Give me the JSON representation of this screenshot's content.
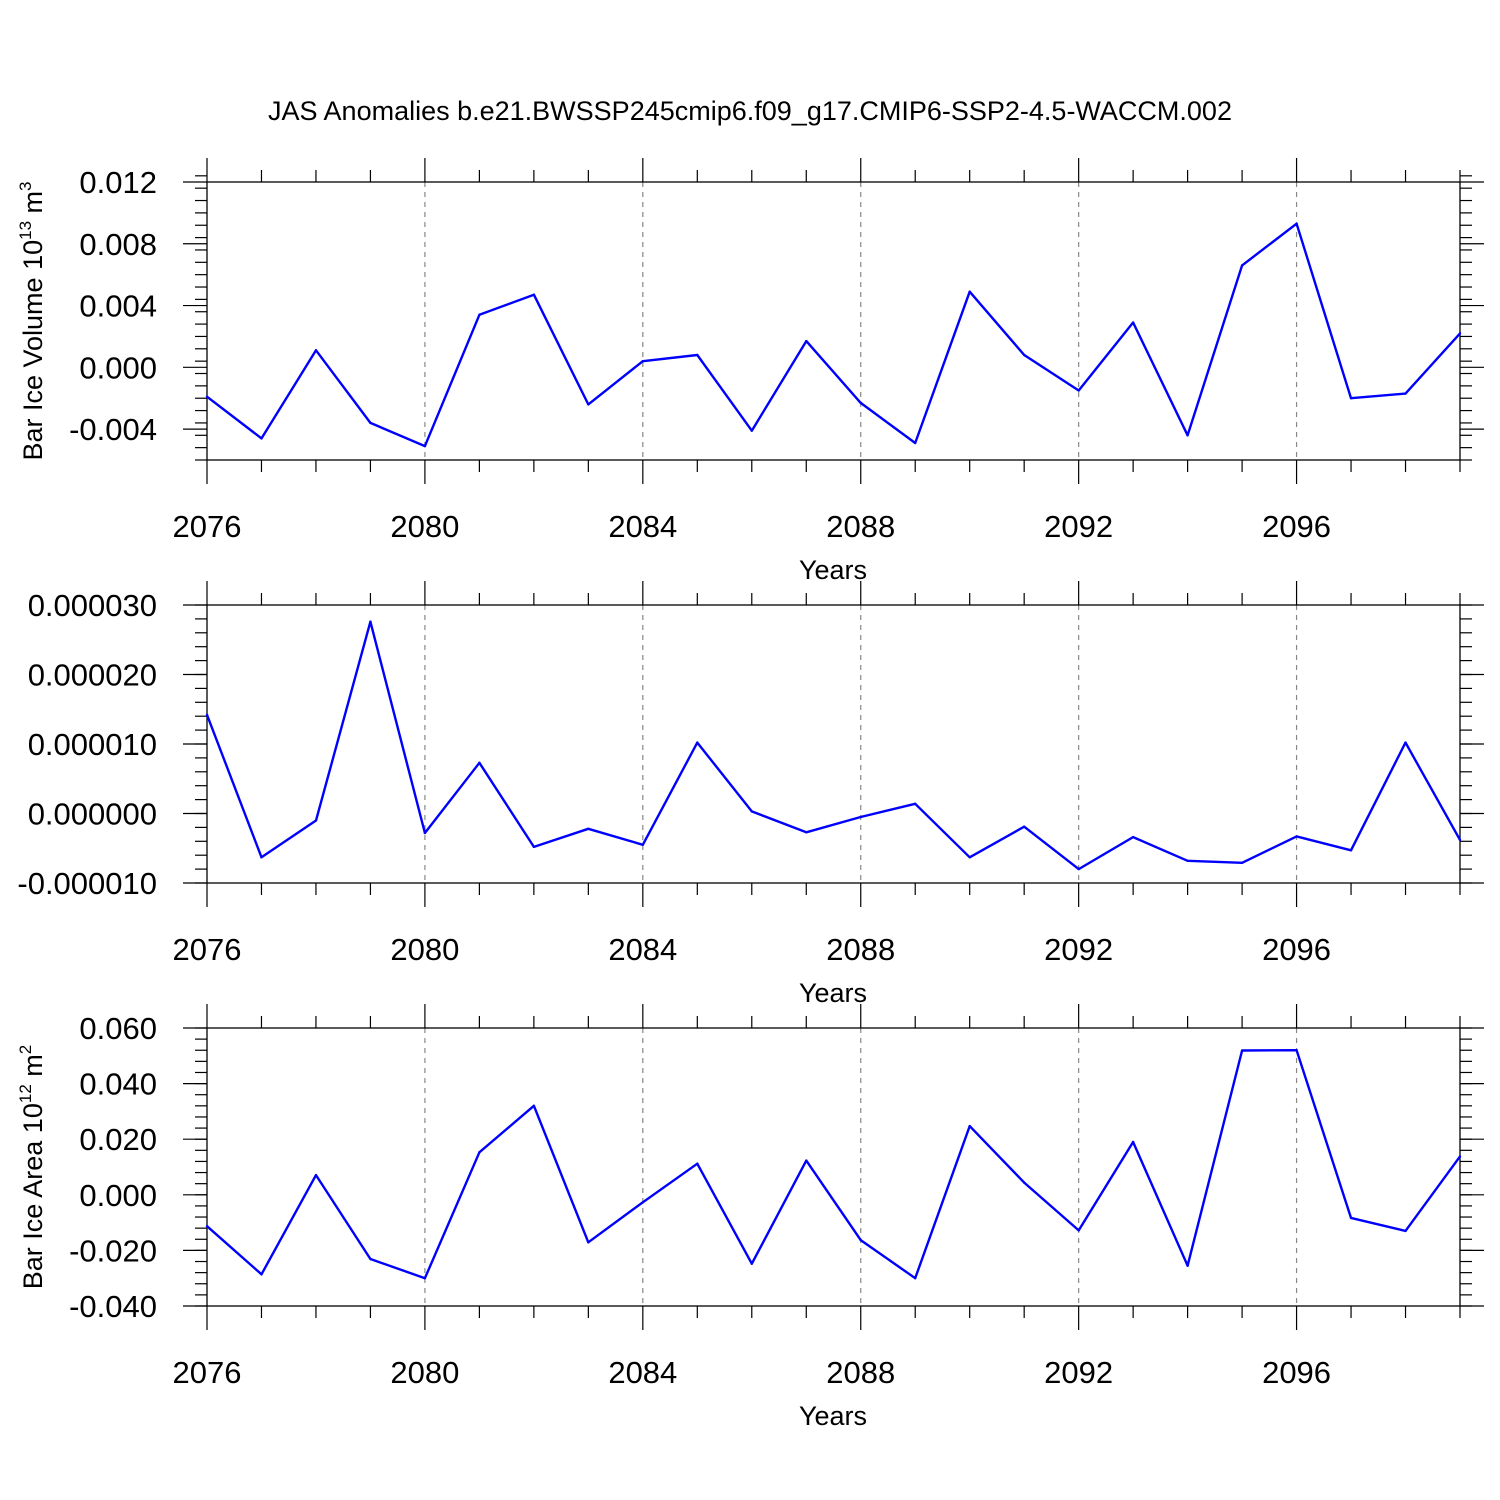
{
  "figure": {
    "title": "JAS Anomalies b.e21.BWSSP245cmip6.f09_g17.CMIP6-SSP2-4.5-WACCM.002"
  },
  "colors": {
    "series": "#0000ff",
    "axes": "#000000",
    "grid": "#888888"
  },
  "chart_data": [
    {
      "type": "line",
      "xlabel": "Years",
      "ylabel": "Bar Ice Volume",
      "ylabel_base": "10",
      "ylabel_exp": "13",
      "ylabel_unit": "m",
      "ylabel_unit_exp": "3",
      "xlim": [
        2076,
        2099
      ],
      "ylim": [
        -0.006,
        0.012
      ],
      "x_major_ticks": [
        2076,
        2080,
        2084,
        2088,
        2092,
        2096
      ],
      "x_tick_labels": [
        "2076",
        "2080",
        "2084",
        "2088",
        "2092",
        "2096"
      ],
      "y_major_ticks": [
        -0.004,
        0.0,
        0.004,
        0.008,
        0.012
      ],
      "y_tick_labels": [
        "-0.004",
        "0.000",
        "0.004",
        "0.008",
        "0.012"
      ],
      "y_minor_step": 0.0008,
      "grid": "dashed vertical at major x ticks",
      "x": [
        2076,
        2077,
        2078,
        2079,
        2080,
        2081,
        2082,
        2083,
        2084,
        2085,
        2086,
        2087,
        2088,
        2089,
        2090,
        2091,
        2092,
        2093,
        2094,
        2095,
        2096,
        2097,
        2098,
        2099
      ],
      "values": [
        -0.0019,
        -0.0046,
        0.0011,
        -0.0036,
        -0.0051,
        0.0034,
        0.0047,
        -0.0024,
        0.0004,
        0.0008,
        -0.0041,
        0.0017,
        -0.0023,
        -0.0049,
        0.0049,
        0.0008,
        -0.0015,
        0.0029,
        -0.0044,
        0.0066,
        0.0093,
        -0.002,
        -0.0017,
        0.0022
      ]
    },
    {
      "type": "line",
      "xlabel": "Years",
      "ylabel": "",
      "xlim": [
        2076,
        2099
      ],
      "ylim": [
        -1e-05,
        3e-05
      ],
      "x_major_ticks": [
        2076,
        2080,
        2084,
        2088,
        2092,
        2096
      ],
      "x_tick_labels": [
        "2076",
        "2080",
        "2084",
        "2088",
        "2092",
        "2096"
      ],
      "y_major_ticks": [
        -1e-05,
        0.0,
        1e-05,
        2e-05,
        3e-05
      ],
      "y_tick_labels": [
        "-0.000010",
        "0.000000",
        "0.000010",
        "0.000020",
        "0.000030"
      ],
      "y_minor_step": 2e-06,
      "grid": "dashed vertical at major x ticks",
      "x": [
        2076,
        2077,
        2078,
        2079,
        2080,
        2081,
        2082,
        2083,
        2084,
        2085,
        2086,
        2087,
        2088,
        2089,
        2090,
        2091,
        2092,
        2093,
        2094,
        2095,
        2096,
        2097,
        2098,
        2099
      ],
      "values": [
        1.42e-05,
        -6.3e-06,
        -1e-06,
        2.76e-05,
        -2.8e-06,
        7.3e-06,
        -4.8e-06,
        -2.2e-06,
        -4.5e-06,
        1.02e-05,
        3e-07,
        -2.7e-06,
        -5e-07,
        1.4e-06,
        -6.3e-06,
        -1.9e-06,
        -8e-06,
        -3.4e-06,
        -6.8e-06,
        -7.1e-06,
        -3.3e-06,
        -5.3e-06,
        1.02e-05,
        -3.8e-06
      ]
    },
    {
      "type": "line",
      "xlabel": "Years",
      "ylabel": "Bar Ice Area",
      "ylabel_base": "10",
      "ylabel_exp": "12",
      "ylabel_unit": "m",
      "ylabel_unit_exp": "2",
      "xlim": [
        2076,
        2099
      ],
      "ylim": [
        -0.04,
        0.06
      ],
      "x_major_ticks": [
        2076,
        2080,
        2084,
        2088,
        2092,
        2096
      ],
      "x_tick_labels": [
        "2076",
        "2080",
        "2084",
        "2088",
        "2092",
        "2096"
      ],
      "y_major_ticks": [
        -0.04,
        -0.02,
        0.0,
        0.02,
        0.04,
        0.06
      ],
      "y_tick_labels": [
        "-0.040",
        "-0.020",
        "0.000",
        "0.020",
        "0.040",
        "0.060"
      ],
      "y_minor_step": 0.004,
      "grid": "dashed vertical at major x ticks",
      "x": [
        2076,
        2077,
        2078,
        2079,
        2080,
        2081,
        2082,
        2083,
        2084,
        2085,
        2086,
        2087,
        2088,
        2089,
        2090,
        2091,
        2092,
        2093,
        2094,
        2095,
        2096,
        2097,
        2098,
        2099
      ],
      "values": [
        -0.0113,
        -0.0286,
        0.0071,
        -0.0231,
        -0.03,
        0.0153,
        0.032,
        -0.0171,
        -0.0027,
        0.0112,
        -0.0248,
        0.0123,
        -0.0163,
        -0.03,
        0.0247,
        0.0044,
        -0.0128,
        0.019,
        -0.0255,
        0.0519,
        0.052,
        -0.0083,
        -0.013,
        0.0138
      ]
    }
  ]
}
